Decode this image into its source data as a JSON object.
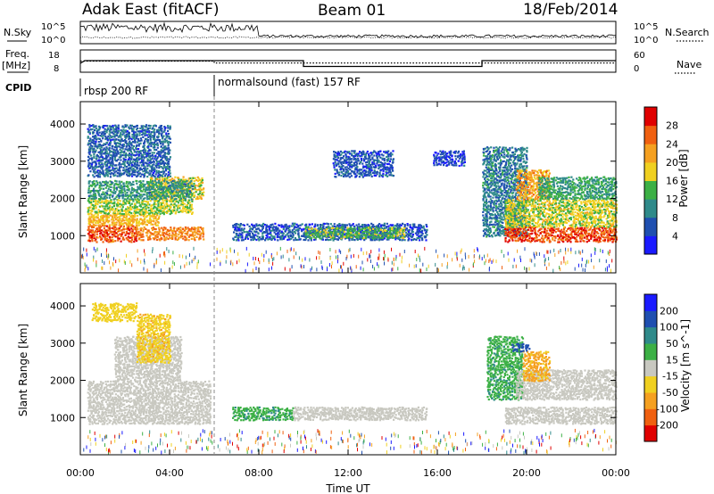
{
  "header": {
    "station": "Adak East (fitACF)",
    "beam": "Beam 01",
    "date": "18/Feb/2014"
  },
  "left_labels": {
    "nsky": "N.Sky",
    "freq_line1": "Freq.",
    "freq_line2": "[MHz]",
    "cpid": "CPID"
  },
  "right_labels": {
    "nsearch": "N.Search",
    "nave": "Nave"
  },
  "chart_data": [
    {
      "type": "line",
      "panel": "noise",
      "y_left_ticks": [
        "10^5",
        "10^0"
      ],
      "y_right_ticks": [
        "10^5",
        "10^0"
      ],
      "series": [
        {
          "name": "N.Sky",
          "style": "solid"
        },
        {
          "name": "N.Search",
          "style": "dotted"
        }
      ]
    },
    {
      "type": "line",
      "panel": "frequency",
      "y_left_ticks": [
        "18",
        "8"
      ],
      "y_right_ticks": [
        "60",
        "0"
      ],
      "ylim_left": [
        8,
        18
      ],
      "ylim_right": [
        0,
        60
      ],
      "series": [
        {
          "name": "Freq.",
          "style": "solid",
          "points": [
            [
              0,
              12
            ],
            [
              0.2,
              13.2
            ],
            [
              6,
              13.2
            ],
            [
              10,
              13.2
            ],
            [
              10,
              10.6
            ],
            [
              18,
              10.6
            ],
            [
              18,
              13.2
            ],
            [
              24,
              13.2
            ]
          ]
        },
        {
          "name": "Nave",
          "style": "dotted",
          "points": [
            [
              0,
              30
            ],
            [
              6,
              30
            ],
            [
              6,
              25
            ],
            [
              24,
              25
            ]
          ]
        }
      ]
    },
    {
      "type": "table",
      "panel": "cpid",
      "segments": [
        {
          "start": 0,
          "label": "rbsp 200 RF"
        },
        {
          "start": 6,
          "label": "normalsound (fast) 157 RF"
        }
      ]
    },
    {
      "type": "heatmap",
      "panel": "power",
      "ylabel": "Slant Range [km]",
      "ylim": [
        0,
        4600
      ],
      "yticks": [
        1000,
        2000,
        3000,
        4000
      ],
      "colorbar": {
        "label": "Power [dB]",
        "ticks": [
          4,
          8,
          12,
          16,
          20,
          24,
          28
        ],
        "colors": [
          "#1a1aff",
          "#1f4fb0",
          "#2f8a8a",
          "#3cb045",
          "#f0d020",
          "#f5a020",
          "#f06010",
          "#e00000"
        ]
      },
      "echo_regions": [
        {
          "t0": 0.3,
          "t1": 2.5,
          "r0": 850,
          "r1": 1300,
          "v": 27
        },
        {
          "t0": 2.5,
          "t1": 5.5,
          "r0": 900,
          "r1": 1250,
          "v": 24
        },
        {
          "t0": 0.3,
          "t1": 3.5,
          "r0": 1300,
          "r1": 1600,
          "v": 20
        },
        {
          "t0": 0.3,
          "t1": 5,
          "r0": 1600,
          "r1": 2000,
          "v": 16
        },
        {
          "t0": 3,
          "t1": 5.5,
          "r0": 2000,
          "r1": 2600,
          "v": 18
        },
        {
          "t0": 0.3,
          "t1": 5,
          "r0": 2000,
          "r1": 2500,
          "v": 11
        },
        {
          "t0": 0.3,
          "t1": 4,
          "r0": 2600,
          "r1": 4000,
          "v": 7
        },
        {
          "t0": 6.8,
          "t1": 15.5,
          "r0": 900,
          "r1": 1350,
          "v": 6
        },
        {
          "t0": 10,
          "t1": 14.5,
          "r0": 950,
          "r1": 1250,
          "v": 14
        },
        {
          "t0": 11.3,
          "t1": 14,
          "r0": 2600,
          "r1": 3300,
          "v": 6
        },
        {
          "t0": 15.8,
          "t1": 17.2,
          "r0": 2900,
          "r1": 3300,
          "v": 5
        },
        {
          "t0": 18,
          "t1": 20,
          "r0": 1000,
          "r1": 3400,
          "v": 9
        },
        {
          "t0": 19,
          "t1": 24,
          "r0": 850,
          "r1": 1250,
          "v": 27
        },
        {
          "t0": 19,
          "t1": 24,
          "r0": 1250,
          "r1": 2000,
          "v": 17
        },
        {
          "t0": 19.5,
          "t1": 21,
          "r0": 2000,
          "r1": 2800,
          "v": 22
        },
        {
          "t0": 20.5,
          "t1": 24,
          "r0": 2000,
          "r1": 2600,
          "v": 12
        }
      ]
    },
    {
      "type": "heatmap",
      "panel": "velocity",
      "ylabel": "Slant Range [km]",
      "xlabel": "Time UT",
      "ylim": [
        0,
        4600
      ],
      "yticks": [
        1000,
        2000,
        3000,
        4000
      ],
      "xticks": [
        "00:00",
        "04:00",
        "08:00",
        "12:00",
        "16:00",
        "20:00",
        "00:00"
      ],
      "xlim_hours": [
        0,
        24
      ],
      "colorbar": {
        "label": "Velocity [m s^-1]",
        "ticks": [
          -200,
          -100,
          -50,
          -15,
          15,
          50,
          100,
          200
        ],
        "colors": [
          "#e00000",
          "#f06010",
          "#f5a020",
          "#f0d020",
          "#c8c8c0",
          "#3cb045",
          "#2f8a8a",
          "#1f4fb0",
          "#1a1aff"
        ]
      },
      "echo_regions": [
        {
          "t0": 0.3,
          "t1": 5.8,
          "r0": 850,
          "r1": 2000,
          "v": 0
        },
        {
          "t0": 1.5,
          "t1": 4.5,
          "r0": 2000,
          "r1": 3200,
          "v": 0
        },
        {
          "t0": 2.5,
          "t1": 4,
          "r0": 2500,
          "r1": 3800,
          "v": -40
        },
        {
          "t0": 0.5,
          "t1": 2.5,
          "r0": 3600,
          "r1": 4100,
          "v": -30
        },
        {
          "t0": 6.8,
          "t1": 9.5,
          "r0": 950,
          "r1": 1300,
          "v": 40
        },
        {
          "t0": 9.5,
          "t1": 15.5,
          "r0": 950,
          "r1": 1300,
          "v": 0
        },
        {
          "t0": 18.2,
          "t1": 19.8,
          "r0": 1500,
          "r1": 3200,
          "v": 40
        },
        {
          "t0": 19,
          "t1": 24,
          "r0": 850,
          "r1": 1300,
          "v": 0
        },
        {
          "t0": 19.5,
          "t1": 24,
          "r0": 1500,
          "r1": 2300,
          "v": 0
        },
        {
          "t0": 19.8,
          "t1": 21,
          "r0": 2000,
          "r1": 2800,
          "v": -60
        },
        {
          "t0": 19.3,
          "t1": 20.1,
          "r0": 2800,
          "r1": 3000,
          "v": 120
        }
      ]
    }
  ]
}
